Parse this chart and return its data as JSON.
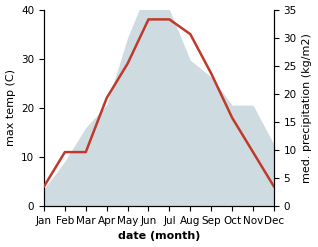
{
  "months": [
    "Jan",
    "Feb",
    "Mar",
    "Apr",
    "May",
    "Jun",
    "Jul",
    "Aug",
    "Sep",
    "Oct",
    "Nov",
    "Dec"
  ],
  "temperature": [
    4,
    11,
    11,
    22,
    29,
    38,
    38,
    35,
    27,
    18,
    11,
    4
  ],
  "precipitation": [
    3,
    8,
    14,
    18,
    30,
    39,
    35,
    26,
    23,
    18,
    18,
    11
  ],
  "temp_ylim": [
    0,
    40
  ],
  "precip_ylim": [
    0,
    35
  ],
  "temp_color": "#c0392b",
  "precip_color": "#aec6cf",
  "xlabel": "date (month)",
  "ylabel_left": "max temp (C)",
  "ylabel_right": "med. precipitation (kg/m2)",
  "label_fontsize": 8,
  "tick_fontsize": 7.5
}
